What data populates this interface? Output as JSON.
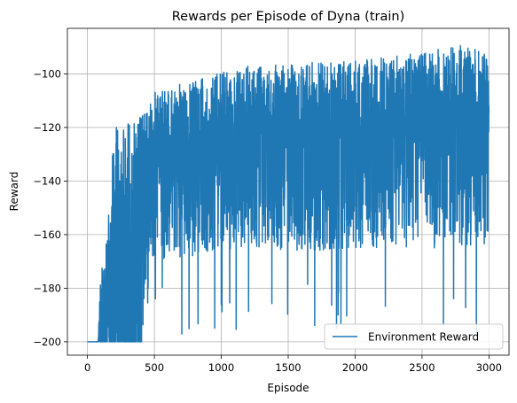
{
  "chart_data": {
    "type": "line",
    "title": "Rewards per Episode of Dyna (train)",
    "xlabel": "Episode",
    "ylabel": "Reward",
    "xlim": [
      -150,
      3150
    ],
    "ylim": [
      -205,
      -83
    ],
    "xticks": [
      0,
      500,
      1000,
      1500,
      2000,
      2500,
      3000
    ],
    "yticks": [
      -200,
      -180,
      -160,
      -140,
      -120,
      -100
    ],
    "xtick_labels": [
      "0",
      "500",
      "1000",
      "1500",
      "2000",
      "2500",
      "3000"
    ],
    "ytick_labels": [
      "−200",
      "−180",
      "−160",
      "−140",
      "−120",
      "−100"
    ],
    "grid": true,
    "legend": {
      "position": "bottom-right"
    },
    "series": [
      {
        "name": "Environment Reward",
        "color": "#1f77b4",
        "episodes": 3000,
        "profile": [
          {
            "x": 0,
            "low": -200,
            "high": -200
          },
          {
            "x": 80,
            "low": -200,
            "high": -200
          },
          {
            "x": 100,
            "low": -200,
            "high": -170
          },
          {
            "x": 150,
            "low": -200,
            "high": -158
          },
          {
            "x": 200,
            "low": -200,
            "high": -120
          },
          {
            "x": 300,
            "low": -200,
            "high": -118
          },
          {
            "x": 420,
            "low": -195,
            "high": -114
          },
          {
            "x": 500,
            "low": -170,
            "high": -107
          },
          {
            "x": 800,
            "low": -168,
            "high": -102
          },
          {
            "x": 1200,
            "low": -165,
            "high": -97
          },
          {
            "x": 1600,
            "low": -166,
            "high": -96
          },
          {
            "x": 2000,
            "low": -166,
            "high": -95
          },
          {
            "x": 2400,
            "low": -165,
            "high": -92
          },
          {
            "x": 2800,
            "low": -165,
            "high": -89
          },
          {
            "x": 3000,
            "low": -164,
            "high": -92
          }
        ]
      }
    ]
  }
}
